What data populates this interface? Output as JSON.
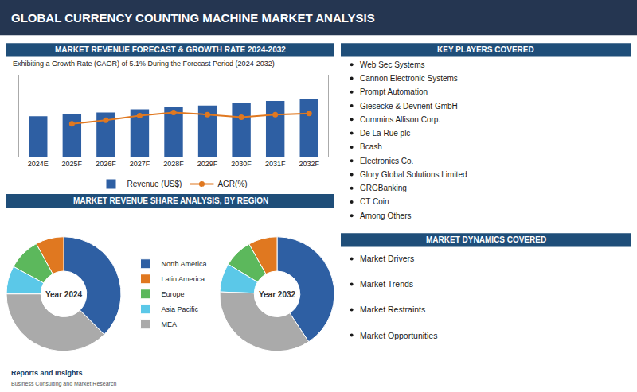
{
  "title": "GLOBAL CURRENCY COUNTING MACHINE MARKET ANALYSIS",
  "chart_data": [
    {
      "type": "bar",
      "title": "MARKET REVENUE FORECAST & GROWTH RATE 2024-2032",
      "subtitle": "Exhibiting a Growth Rate (CAGR) of 5.1% During the Forecast Period (2024-2032)",
      "categories": [
        "2024E",
        "2025F",
        "2026F",
        "2027F",
        "2028F",
        "2029F",
        "2030F",
        "2031F",
        "2032F"
      ],
      "series": [
        {
          "name": "Revenue (US$)",
          "type": "bar",
          "color": "#2e5fa3",
          "values": [
            3.2,
            3.35,
            3.5,
            3.75,
            3.9,
            4.05,
            4.25,
            4.4,
            4.55
          ]
        },
        {
          "name": "AGR(%)",
          "type": "line",
          "color": "#e07820",
          "marker": "o",
          "axis": "y2",
          "values": [
            null,
            3.2,
            3.55,
            4.0,
            4.3,
            4.1,
            3.85,
            4.1,
            4.2
          ]
        }
      ],
      "ylim": [
        0,
        6.5
      ],
      "yticks": [],
      "y2lim": [
        0,
        8
      ],
      "y2ticks": [],
      "grid": false,
      "tick_labels": "x",
      "legend": "lower center"
    },
    {
      "type": "pie",
      "title": "MARKET REVENUE SHARE ANALYSIS, BY REGION",
      "categories": [
        "North America",
        "Latin America",
        "Europe",
        "Asia Pacific",
        "MEA"
      ],
      "colors": [
        "#2e5fa3",
        "#e07820",
        "#5cb85c",
        "#5bc8e8",
        "#aaaaaa"
      ],
      "series": [
        {
          "name": "Year 2024",
          "values": [
            33,
            7,
            8,
            7,
            33
          ]
        },
        {
          "name": "Year 2032",
          "values": [
            35,
            7,
            7,
            7,
            30
          ]
        }
      ],
      "legend": "center"
    }
  ],
  "annotations": [
    {
      "title": "KEY PLAYERS COVERED",
      "items": [
        "Web Sec Systems",
        "Cannon Electronic Systems",
        "Prompt Automation",
        "Giesecke & Devrient GmbH",
        "Cummins Allison Corp.",
        "De La Rue plc",
        "Bcash",
        "Electronics Co.",
        "Glory Global Solutions Limited",
        "GRGBanking",
        "CT Coin",
        "Among Others"
      ]
    },
    {
      "title": "MARKET DYNAMICS COVERED",
      "items": [
        "Market Drivers",
        "Market Trends",
        "Market Restraints",
        "Market Opportunities"
      ]
    },
    {
      "text": "Reports and Insights"
    },
    {
      "text": "Business Consulting and Market Research"
    }
  ]
}
